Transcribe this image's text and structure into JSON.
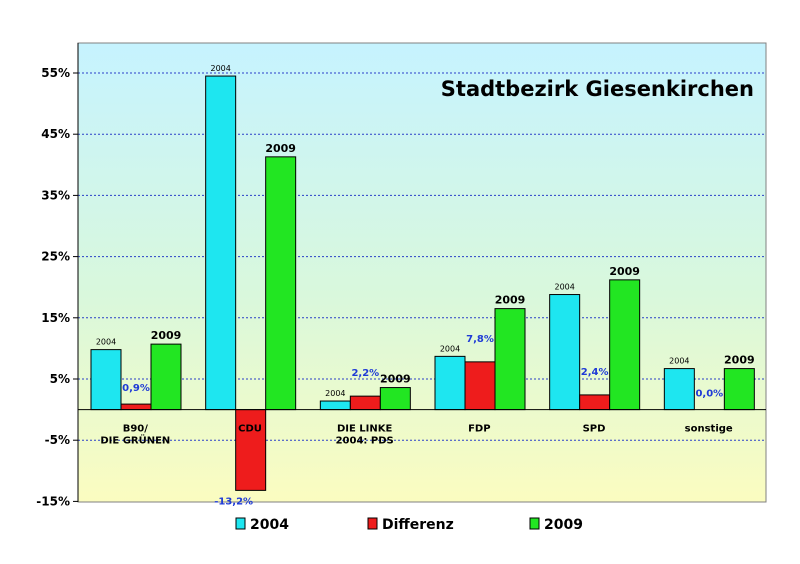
{
  "chart_data": {
    "type": "bar",
    "title": "Stadtbezirk Giesenkirchen",
    "ylim": [
      -15,
      60
    ],
    "yticks": [
      55,
      45,
      35,
      25,
      15,
      5,
      -5,
      -15
    ],
    "ytick_labels": [
      "55%",
      "45%",
      "35%",
      "25%",
      "15%",
      "5%",
      "-5%",
      "-15%"
    ],
    "categories": [
      [
        "B90/",
        "DIE GRÜNEN"
      ],
      [
        "CDU"
      ],
      [
        "DIE LINKE",
        "2004: PDS"
      ],
      [
        "FDP"
      ],
      [
        "SPD"
      ],
      [
        "sonstige"
      ]
    ],
    "series": [
      {
        "name": "2004",
        "color": "#1ee6f0",
        "values": [
          9.8,
          54.5,
          1.4,
          8.7,
          18.8,
          6.7
        ],
        "point_labels": [
          "2004",
          "2004",
          "2004",
          "2004",
          "2004",
          "2004"
        ]
      },
      {
        "name": "Differenz",
        "color": "#ee1c1c",
        "values": [
          0.9,
          -13.2,
          2.2,
          7.8,
          2.4,
          0.0
        ],
        "point_labels": [
          "0,9%",
          "-13,2%",
          "2,2%",
          "7,8%",
          "2,4%",
          "0,0%"
        ]
      },
      {
        "name": "2009",
        "color": "#22e622",
        "values": [
          10.7,
          41.3,
          3.6,
          16.5,
          21.2,
          6.7
        ],
        "point_labels": [
          "2009",
          "2009",
          "2009",
          "2009",
          "2009",
          "2009"
        ]
      }
    ],
    "grid": true,
    "legend_position": "bottom"
  }
}
